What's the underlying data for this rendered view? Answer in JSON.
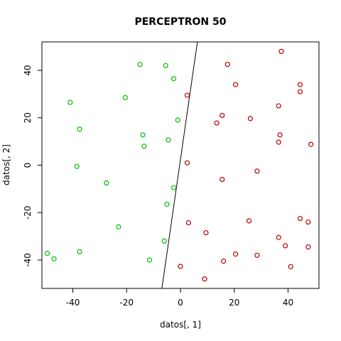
{
  "chart_data": {
    "type": "scatter",
    "title": "PERCEPTRON 50",
    "xlabel": "datos[, 1]",
    "ylabel": "datos[, 2]",
    "xlim": [
      -51.5,
      51.5
    ],
    "ylim": [
      -52,
      52
    ],
    "xticks": [
      "-40",
      "-20",
      "0",
      "20",
      "40"
    ],
    "xtick_values": [
      -40,
      -20,
      0,
      20,
      40
    ],
    "yticks": [
      "-40",
      "-20",
      "0",
      "20",
      "40"
    ],
    "ytick_values": [
      -40,
      -20,
      0,
      20,
      40
    ],
    "grid": false,
    "marker": "open-circle",
    "series": [
      {
        "color": "#00bb00",
        "points": [
          [
            -15,
            42.5
          ],
          [
            -5.5,
            42
          ],
          [
            -2.5,
            36.5
          ],
          [
            -20.5,
            28.5
          ],
          [
            -41,
            26.5
          ],
          [
            -1,
            19
          ],
          [
            -37.5,
            15.2
          ],
          [
            -14,
            12.8
          ],
          [
            -4.5,
            10.7
          ],
          [
            -13.5,
            8
          ],
          [
            -38.5,
            -0.5
          ],
          [
            -27.5,
            -7.5
          ],
          [
            -2.5,
            -9.5
          ],
          [
            -5,
            -16.5
          ],
          [
            -23,
            -26
          ],
          [
            -6,
            -32
          ],
          [
            -49.5,
            -37.2
          ],
          [
            -37.5,
            -36.5
          ],
          [
            -47,
            -39.5
          ],
          [
            -11.5,
            -40
          ]
        ]
      },
      {
        "color": "#bb0000",
        "points": [
          [
            37.5,
            48
          ],
          [
            17.5,
            42.5
          ],
          [
            20.5,
            34
          ],
          [
            44.5,
            34
          ],
          [
            44.5,
            31
          ],
          [
            2.5,
            29.5
          ],
          [
            36.5,
            25
          ],
          [
            15.5,
            21
          ],
          [
            26,
            19.7
          ],
          [
            13.5,
            17.8
          ],
          [
            37,
            12.8
          ],
          [
            36.5,
            9.7
          ],
          [
            48.5,
            8.8
          ],
          [
            2.5,
            1
          ],
          [
            28.5,
            -2.5
          ],
          [
            15.5,
            -6
          ],
          [
            44.5,
            -22.5
          ],
          [
            47.5,
            -24
          ],
          [
            3,
            -24.3
          ],
          [
            25.5,
            -23.5
          ],
          [
            9.5,
            -28.5
          ],
          [
            36.5,
            -30.5
          ],
          [
            39,
            -34
          ],
          [
            47.5,
            -34.5
          ],
          [
            20.5,
            -37.5
          ],
          [
            28.5,
            -38
          ],
          [
            0,
            -42.7
          ],
          [
            16,
            -40.5
          ],
          [
            41,
            -42.8
          ],
          [
            9,
            -48
          ]
        ]
      }
    ],
    "lines": [
      {
        "color": "#000000",
        "from": [
          -6.9,
          -52
        ],
        "to": [
          6.3,
          52
        ]
      }
    ]
  }
}
